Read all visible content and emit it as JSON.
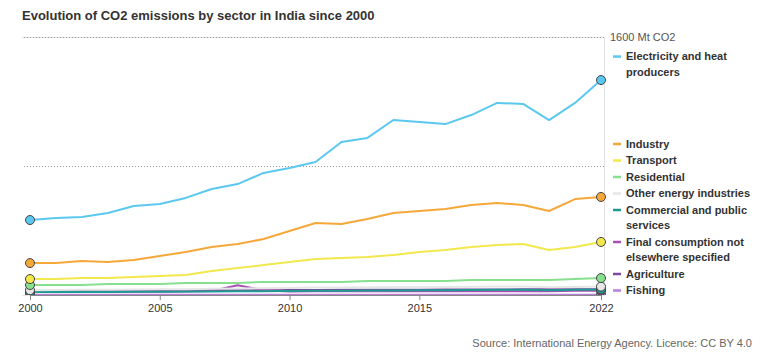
{
  "chart_data": {
    "type": "line",
    "title": "Evolution of CO2 emissions by sector in India since 2000",
    "source": "Source: International Energy Agency. Licence: CC BY 4.0",
    "x": [
      2000,
      2001,
      2002,
      2003,
      2004,
      2005,
      2006,
      2007,
      2008,
      2009,
      2010,
      2011,
      2012,
      2013,
      2014,
      2015,
      2016,
      2017,
      2018,
      2019,
      2020,
      2021,
      2022
    ],
    "xlim": [
      2000,
      2022
    ],
    "xticks": [
      2000,
      2005,
      2010,
      2015,
      2022
    ],
    "ylim": [
      0,
      1600
    ],
    "yticks": [
      {
        "value": 800,
        "label": null
      },
      {
        "value": 1600,
        "label": "1600 Mt CO2"
      }
    ],
    "grid": true,
    "legend": "right",
    "marker": "endpoints",
    "series": [
      {
        "name": "Electricity and heat producers",
        "color": "#5bc8f0",
        "values": [
          465,
          478,
          484,
          509,
          552,
          564,
          602,
          657,
          688,
          757,
          788,
          825,
          949,
          974,
          1085,
          1073,
          1060,
          1116,
          1191,
          1185,
          1085,
          1191,
          1333
        ]
      },
      {
        "name": "Industry",
        "color": "#f5a83a",
        "values": [
          198,
          198,
          211,
          205,
          217,
          242,
          267,
          298,
          316,
          347,
          397,
          447,
          440,
          471,
          509,
          521,
          533,
          558,
          571,
          558,
          521,
          595,
          608
        ]
      },
      {
        "name": "Transport",
        "color": "#f2e84e",
        "values": [
          99,
          99,
          105,
          105,
          112,
          118,
          124,
          149,
          167,
          186,
          205,
          223,
          229,
          236,
          248,
          267,
          279,
          298,
          310,
          316,
          279,
          298,
          329
        ]
      },
      {
        "name": "Residential",
        "color": "#86e08e",
        "values": [
          62,
          62,
          62,
          68,
          68,
          68,
          74,
          74,
          74,
          81,
          81,
          81,
          81,
          87,
          87,
          87,
          87,
          93,
          93,
          93,
          93,
          99,
          105
        ]
      },
      {
        "name": "Other energy industries",
        "color": "#e6e6e6",
        "values": [
          30,
          31,
          32,
          33,
          34,
          35,
          36,
          38,
          40,
          42,
          44,
          46,
          47,
          48,
          49,
          50,
          50,
          51,
          52,
          52,
          48,
          50,
          52
        ]
      },
      {
        "name": "Commercial and public services",
        "color": "#1f9a92",
        "values": [
          18,
          18,
          19,
          19,
          20,
          20,
          21,
          22,
          23,
          24,
          25,
          26,
          27,
          28,
          28,
          29,
          30,
          31,
          32,
          33,
          30,
          32,
          34
        ]
      },
      {
        "name": "Final consumption not elsewhere specified",
        "color": "#a652b3",
        "values": [
          20,
          20,
          20,
          20,
          20,
          20,
          22,
          25,
          60,
          30,
          22,
          24,
          24,
          24,
          24,
          24,
          24,
          24,
          24,
          24,
          24,
          26,
          26
        ]
      },
      {
        "name": "Agriculture",
        "color": "#7d4ba0",
        "values": [
          25,
          26,
          27,
          27,
          28,
          28,
          29,
          29,
          30,
          30,
          31,
          31,
          32,
          32,
          33,
          33,
          34,
          34,
          34,
          35,
          35,
          35,
          36
        ]
      },
      {
        "name": "Fishing",
        "color": "#b97fd6",
        "values": [
          1,
          1,
          1,
          1,
          1,
          1,
          1,
          1,
          1,
          1,
          1,
          1,
          1,
          1,
          1,
          1,
          1,
          1,
          1,
          1,
          1,
          1,
          1
        ]
      }
    ]
  }
}
